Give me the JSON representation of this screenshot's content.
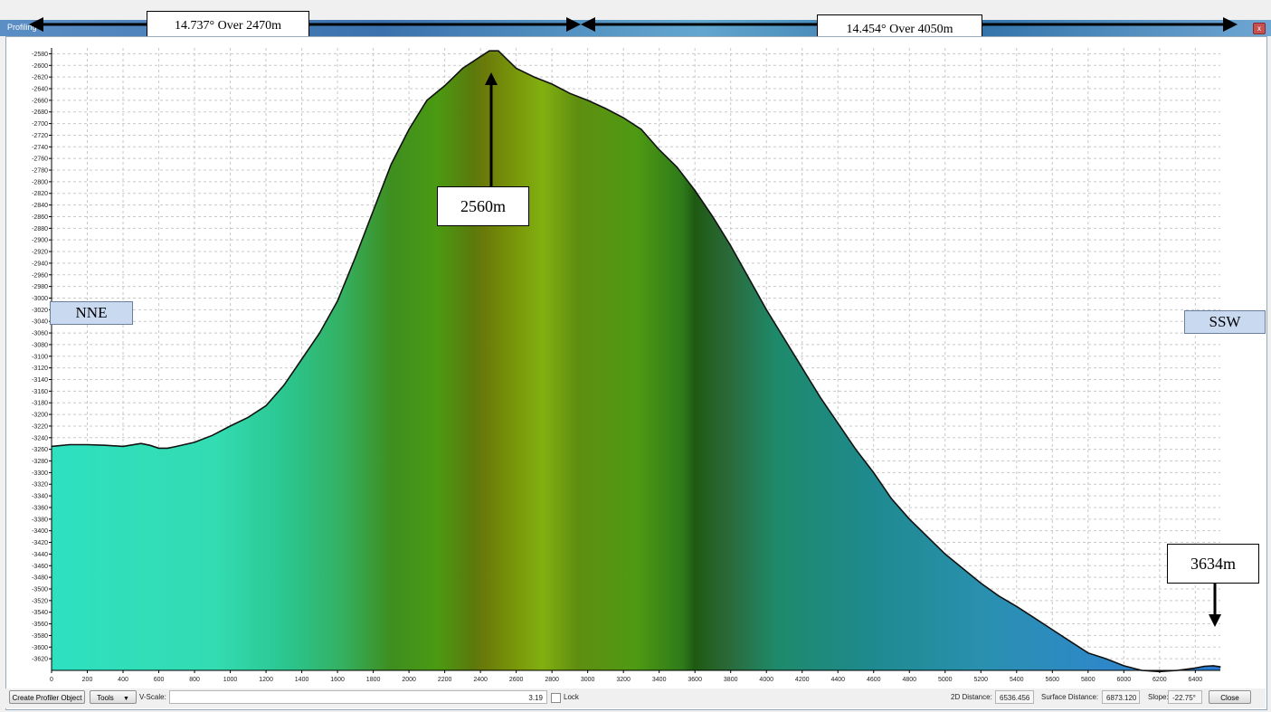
{
  "window": {
    "title": "Profiling",
    "close_glyph": "x"
  },
  "annotations": {
    "segment_left": "14.737° Over 2470m",
    "segment_right": "14.454° Over 4050m",
    "peak_label": "2560m",
    "end_label": "3634m",
    "left_direction": "NNE",
    "right_direction": "SSW"
  },
  "bottombar": {
    "create_button": "Create Profiler Object",
    "tools_button": "Tools",
    "tools_arrow": "▼",
    "vscale_label": "V-Scale:",
    "vscale_value": "3.19",
    "lock_label": "Lock",
    "distance_2d_label": "2D Distance:",
    "distance_2d_value": "6536.456",
    "surface_distance_label": "Surface Distance:",
    "surface_distance_value": "6873.120",
    "slope_label": "Slope:",
    "slope_value": "-22.75°",
    "close_button": "Close"
  },
  "colors": {
    "profile_line": "#111111",
    "grid": "#c8c8c8",
    "fill_low": "#2ee0c0",
    "fill_mid": "#4f9a12",
    "fill_peak": "#6a7a0a",
    "fill_end": "#2a7ad0"
  },
  "chart_data": {
    "type": "area",
    "title": "",
    "xlabel": "",
    "ylabel": "",
    "xlim": [
      0,
      6540
    ],
    "ylim": [
      -3640,
      -2570
    ],
    "grid": true,
    "x_ticks": [
      0,
      200,
      400,
      600,
      800,
      1000,
      1200,
      1400,
      1600,
      1800,
      2000,
      2200,
      2400,
      2600,
      2800,
      3000,
      3200,
      3400,
      3600,
      3800,
      4000,
      4200,
      4400,
      4600,
      4800,
      5000,
      5200,
      5400,
      5600,
      5800,
      6000,
      6200,
      6400
    ],
    "y_ticks": [
      -2580,
      -2600,
      -2620,
      -2640,
      -2660,
      -2680,
      -2700,
      -2720,
      -2740,
      -2760,
      -2780,
      -2800,
      -2820,
      -2840,
      -2860,
      -2880,
      -2900,
      -2920,
      -2940,
      -2960,
      -2980,
      -3000,
      -3020,
      -3040,
      -3060,
      -3080,
      -3100,
      -3120,
      -3140,
      -3160,
      -3180,
      -3200,
      -3220,
      -3240,
      -3260,
      -3280,
      -3300,
      -3320,
      -3340,
      -3360,
      -3380,
      -3400,
      -3420,
      -3440,
      -3460,
      -3480,
      -3500,
      -3520,
      -3540,
      -3560,
      -3580,
      -3600,
      -3620
    ],
    "series": [
      {
        "x": [
          0,
          100,
          200,
          300,
          400,
          500,
          550,
          600,
          650,
          700,
          800,
          900,
          1000,
          1100,
          1200,
          1300,
          1400,
          1500,
          1600,
          1700,
          1800,
          1900,
          2000,
          2100,
          2200,
          2300,
          2400,
          2450,
          2500,
          2550,
          2600,
          2700,
          2800,
          2900,
          3000,
          3100,
          3200,
          3300,
          3400,
          3500,
          3600,
          3700,
          3800,
          3900,
          4000,
          4100,
          4200,
          4300,
          4400,
          4500,
          4600,
          4700,
          4800,
          4900,
          5000,
          5100,
          5200,
          5300,
          5400,
          5500,
          5600,
          5700,
          5800,
          5900,
          6000,
          6100,
          6200,
          6300,
          6400,
          6450,
          6500,
          6540
        ],
        "y": [
          -3255,
          -3252,
          -3252,
          -3253,
          -3255,
          -3250,
          -3253,
          -3258,
          -3258,
          -3255,
          -3248,
          -3236,
          -3220,
          -3205,
          -3185,
          -3150,
          -3105,
          -3060,
          -3005,
          -2930,
          -2850,
          -2770,
          -2710,
          -2660,
          -2635,
          -2605,
          -2585,
          -2575,
          -2575,
          -2590,
          -2605,
          -2620,
          -2632,
          -2648,
          -2660,
          -2674,
          -2690,
          -2710,
          -2745,
          -2775,
          -2815,
          -2860,
          -2910,
          -2965,
          -3020,
          -3070,
          -3120,
          -3170,
          -3215,
          -3260,
          -3300,
          -3345,
          -3380,
          -3410,
          -3440,
          -3465,
          -3490,
          -3512,
          -3530,
          -3550,
          -3570,
          -3590,
          -3610,
          -3620,
          -3632,
          -3640,
          -3642,
          -3640,
          -3636,
          -3633,
          -3632,
          -3634
        ]
      }
    ]
  }
}
